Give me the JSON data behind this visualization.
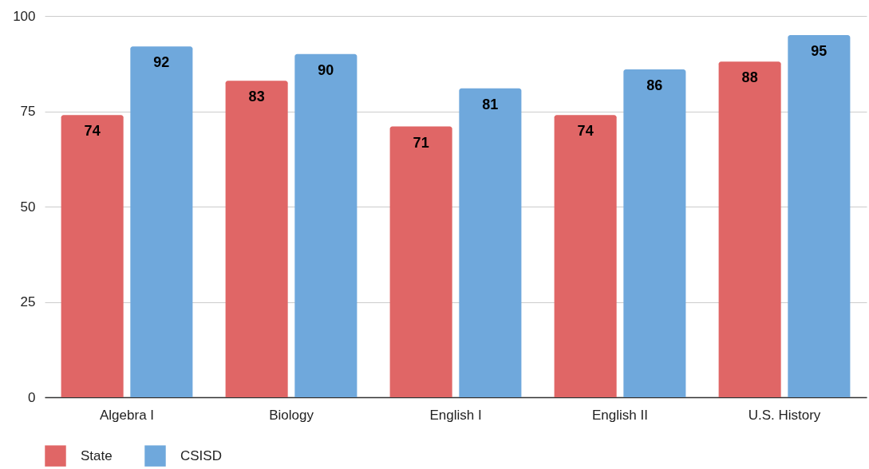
{
  "chart_data": {
    "type": "bar",
    "categories": [
      "Algebra I",
      "Biology",
      "English I",
      "English II",
      "U.S. History"
    ],
    "series": [
      {
        "name": "State",
        "color": "#e06666",
        "values": [
          74,
          83,
          71,
          74,
          88
        ]
      },
      {
        "name": "CSISD",
        "color": "#6fa8dc",
        "values": [
          92,
          90,
          81,
          86,
          95
        ]
      }
    ],
    "ylim": [
      0,
      100
    ],
    "yticks": [
      0,
      25,
      50,
      75,
      100
    ],
    "grid": "y",
    "legend": "bottom",
    "data_labels": true
  }
}
